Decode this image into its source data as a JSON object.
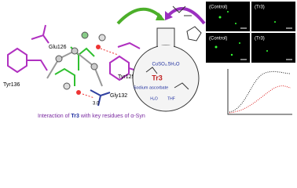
{
  "molecule_view": {
    "residues": [
      "Tyr136",
      "Glu126",
      "Tyr125",
      "Gly132"
    ],
    "distance": "3.0",
    "caption": {
      "prefix": "Interaction of ",
      "compound": "Tr3",
      "suffix": " with key residues of α-Syn"
    }
  },
  "flask": {
    "reagents": [
      "CuSO₄.5H₂O",
      "Tr3",
      "Sodium ascorbate",
      "H₂O",
      "THF"
    ]
  },
  "microscopy": {
    "panels": [
      "(Control)",
      "(Tr3)",
      "(Control)",
      "(Tr3)"
    ]
  }
}
